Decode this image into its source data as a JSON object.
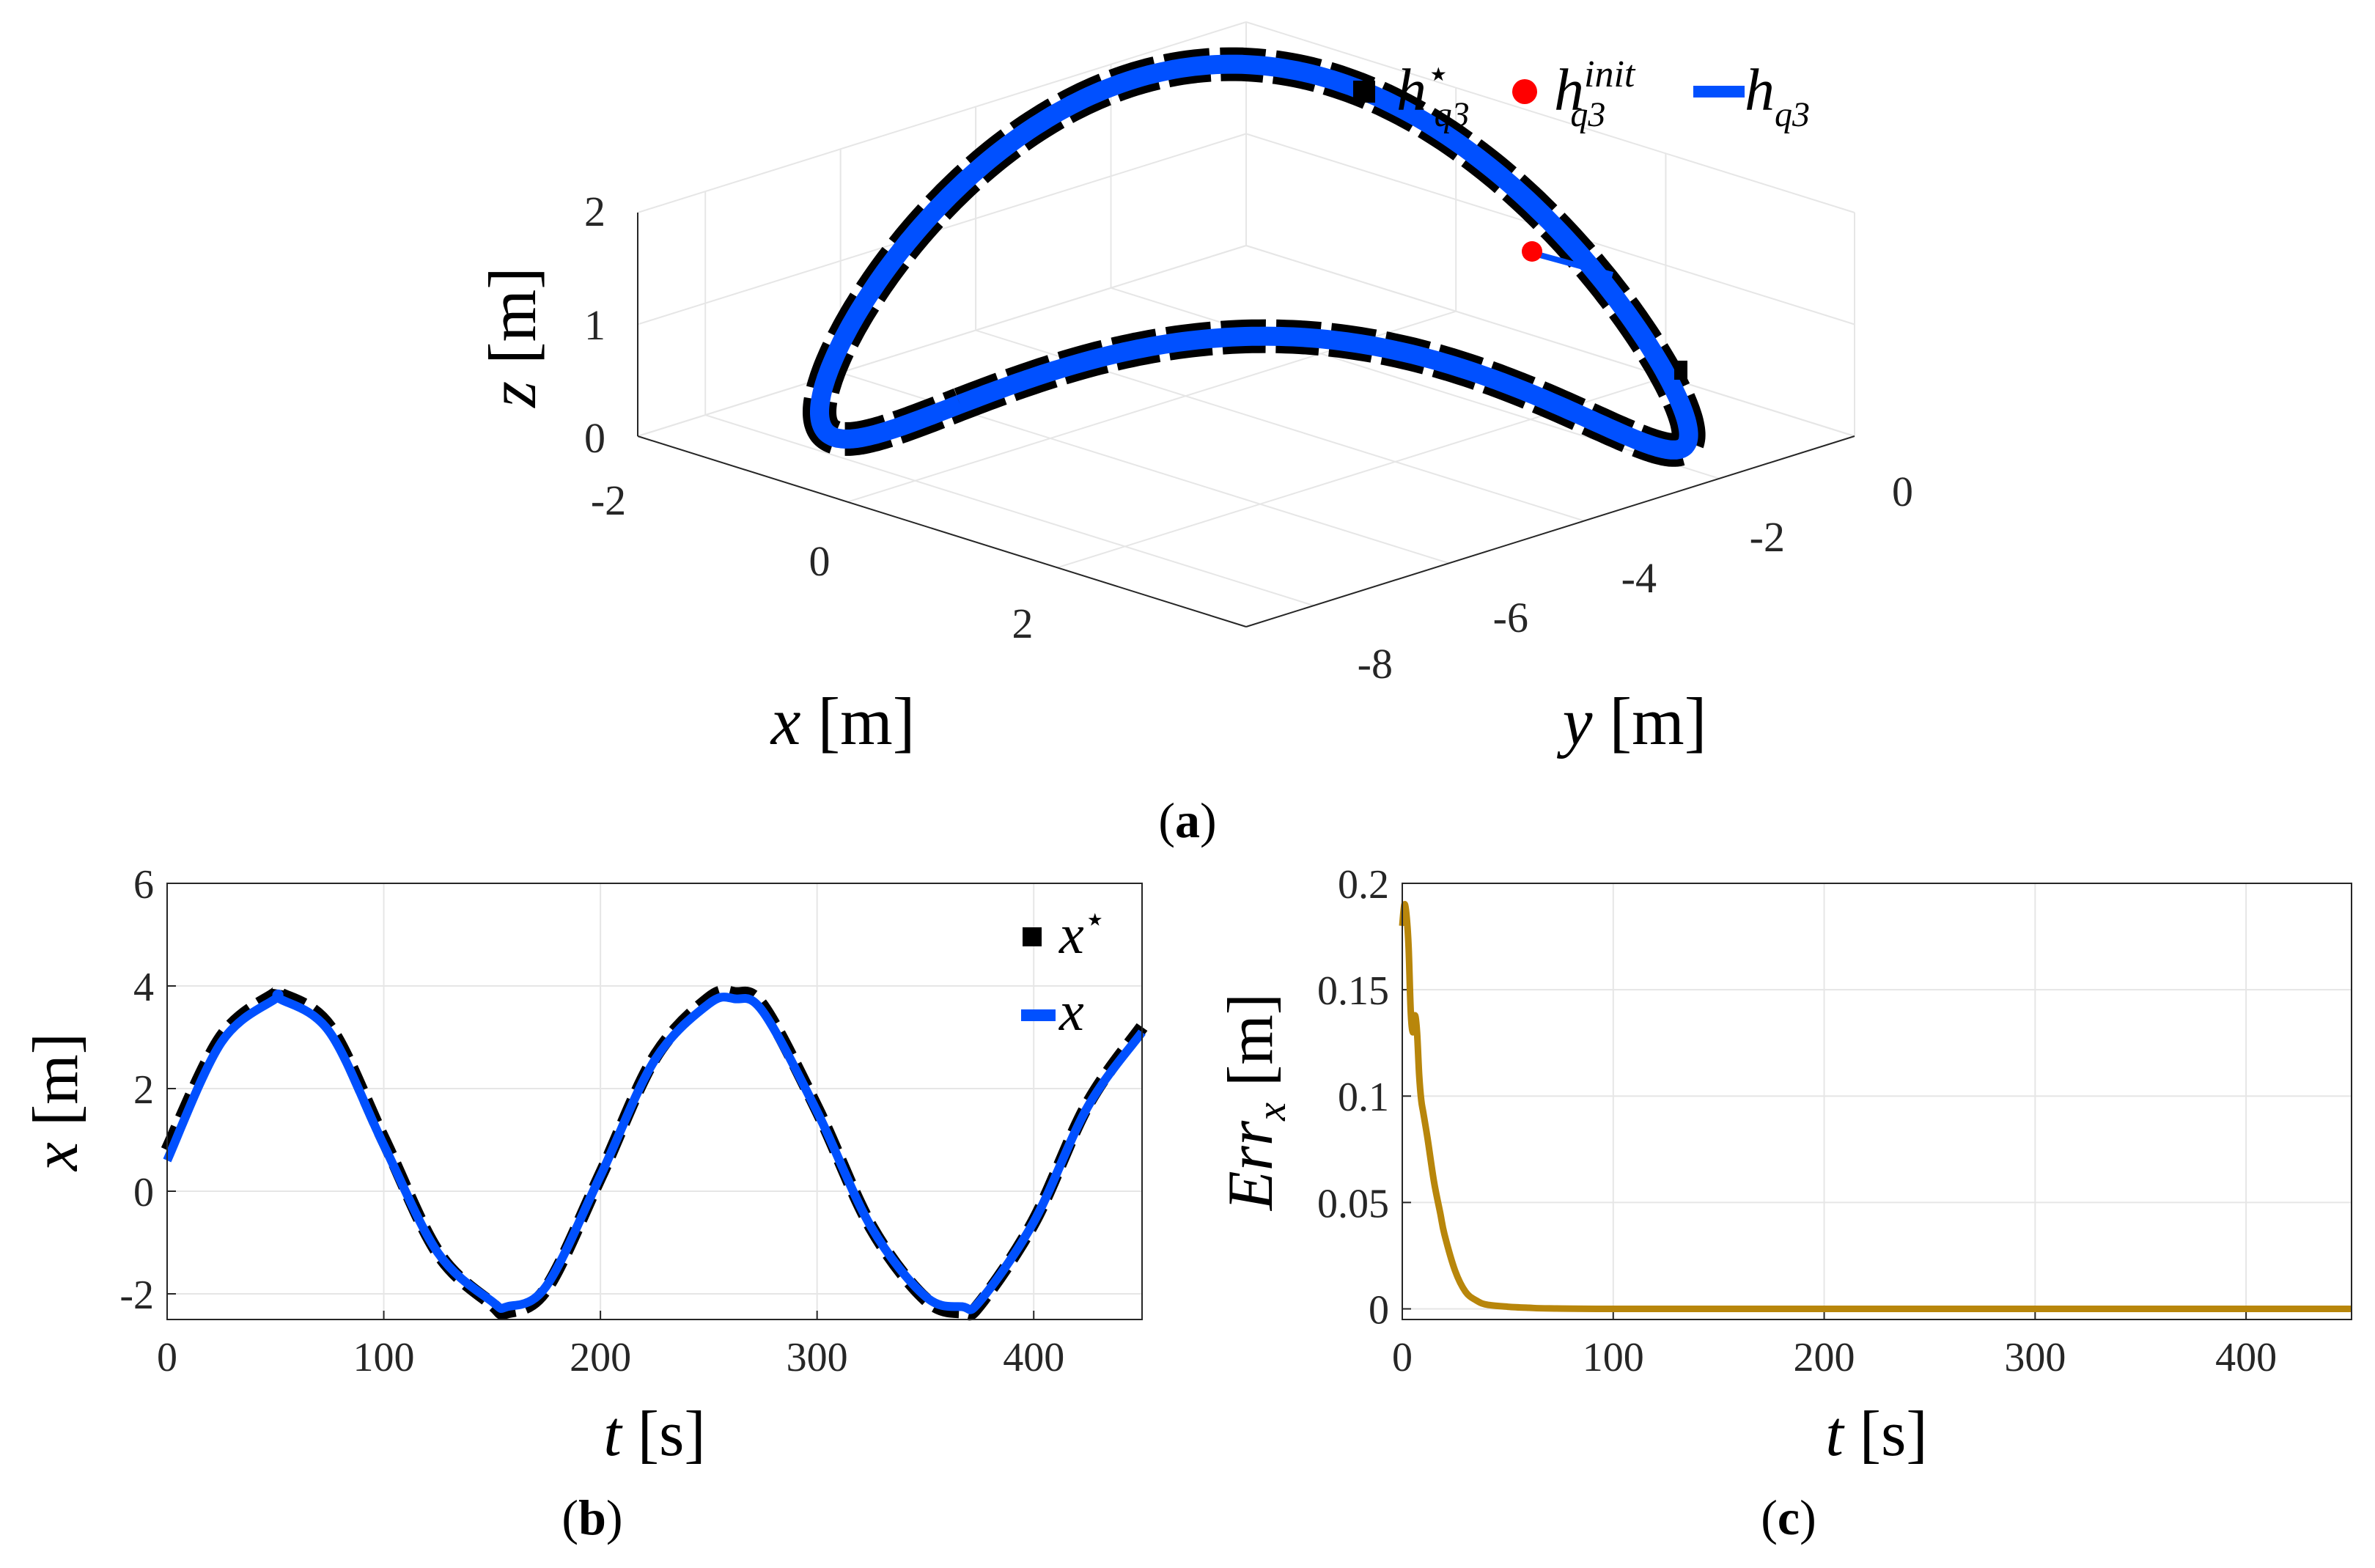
{
  "chart_data": [
    {
      "panel": "(a)",
      "type": "line3d",
      "xlabel": "x [m]",
      "ylabel": "y [m]",
      "zlabel": "z [m]",
      "xticks": [
        "-2",
        "0",
        "2"
      ],
      "yticks": [
        "-8",
        "-6",
        "-4",
        "-2",
        "0"
      ],
      "zticks": [
        "0",
        "1",
        "2"
      ],
      "xlim": [
        -2,
        3.8
      ],
      "ylim": [
        -9,
        0
      ],
      "zlim": [
        0,
        2
      ],
      "grid": true,
      "legend_position": "top-right",
      "legend": [
        {
          "base": "h",
          "sup": "⋆",
          "sub": "q3",
          "marker": "black square"
        },
        {
          "base": "h",
          "sup": "init",
          "sub": "q3",
          "marker": "red circle"
        },
        {
          "base": "h",
          "sup": "",
          "sub": "q3",
          "marker": "blue line"
        }
      ],
      "series": [
        {
          "name": "h*_q3",
          "style": "black dashed",
          "shape": "figure-eight",
          "x_range": [
            -2.3,
            3.8
          ],
          "y_range": [
            -8.5,
            0.2
          ],
          "z_range": [
            0,
            2
          ]
        },
        {
          "name": "h_q3",
          "style": "blue solid",
          "shape": "figure-eight",
          "x_range": [
            -2.3,
            3.8
          ],
          "y_range": [
            -8.5,
            0.2
          ],
          "z_range": [
            0,
            2
          ]
        }
      ],
      "init_point": {
        "x": 0.8,
        "y": -1.2,
        "z": 1.6
      },
      "colors": {
        "reference": "#000000",
        "trajectory": "#0050ff",
        "init": "#ff0000"
      }
    },
    {
      "panel": "(b)",
      "type": "line",
      "xlabel": "t [s]",
      "ylabel": "x [m]",
      "xlim": [
        0,
        450
      ],
      "ylim": [
        -2.5,
        6
      ],
      "xticks": [
        "0",
        "100",
        "200",
        "300",
        "400"
      ],
      "yticks": [
        "-2",
        "0",
        "2",
        "4",
        "6"
      ],
      "grid": true,
      "legend_position": "top-right",
      "legend": [
        {
          "base": "x",
          "sup": "⋆",
          "marker": "black square"
        },
        {
          "base": "x",
          "sup": "",
          "marker": "blue line"
        }
      ],
      "series": [
        {
          "name": "x*",
          "style": "black dashed",
          "x": [
            0,
            25,
            50,
            52,
            75,
            100,
            125,
            150,
            157,
            175,
            200,
            225,
            250,
            262,
            275,
            300,
            325,
            350,
            367,
            375,
            400,
            425,
            450
          ],
          "y": [
            0.8,
            3.0,
            3.85,
            3.85,
            3.2,
            1.0,
            -1.2,
            -2.2,
            -2.35,
            -1.9,
            0.3,
            2.6,
            3.75,
            3.85,
            3.6,
            1.6,
            -0.7,
            -2.1,
            -2.35,
            -2.2,
            -0.6,
            1.7,
            3.2
          ]
        },
        {
          "name": "x",
          "style": "blue solid",
          "x": [
            0,
            25,
            50,
            52,
            75,
            100,
            125,
            150,
            157,
            175,
            200,
            225,
            250,
            262,
            275,
            300,
            325,
            350,
            367,
            375,
            400,
            425,
            450
          ],
          "y": [
            0.6,
            2.9,
            3.75,
            3.75,
            3.1,
            0.9,
            -1.2,
            -2.15,
            -2.25,
            -1.85,
            0.3,
            2.55,
            3.65,
            3.75,
            3.5,
            1.55,
            -0.7,
            -2.05,
            -2.25,
            -2.15,
            -0.6,
            1.65,
            3.1
          ]
        }
      ],
      "colors": {
        "reference": "#000000",
        "trajectory": "#0050ff"
      }
    },
    {
      "panel": "(c)",
      "type": "line",
      "xlabel": "t [s]",
      "ylabel": "Err_x [m]",
      "xlim": [
        0,
        450
      ],
      "ylim": [
        -0.005,
        0.2
      ],
      "xticks": [
        "0",
        "100",
        "200",
        "300",
        "400"
      ],
      "yticks": [
        "0",
        "0.05",
        "0.1",
        "0.15",
        "0.2"
      ],
      "grid": true,
      "series": [
        {
          "name": "Err_x",
          "style": "solid",
          "x": [
            0,
            1,
            2,
            3,
            4,
            5,
            6,
            7,
            8,
            9,
            10,
            12,
            15,
            18,
            20,
            25,
            30,
            35,
            40,
            50,
            60,
            70,
            100,
            200,
            300,
            400,
            450
          ],
          "y": [
            0.18,
            0.19,
            0.185,
            0.17,
            0.14,
            0.13,
            0.138,
            0.13,
            0.11,
            0.098,
            0.092,
            0.08,
            0.06,
            0.045,
            0.035,
            0.018,
            0.008,
            0.004,
            0.002,
            0.001,
            0.0005,
            0.0002,
            0.0,
            0.0,
            0.0,
            0.0,
            0.0
          ]
        }
      ],
      "colors": {
        "line": "#b8860b"
      }
    }
  ],
  "captions": {
    "a": "a",
    "b": "b",
    "c": "c"
  }
}
